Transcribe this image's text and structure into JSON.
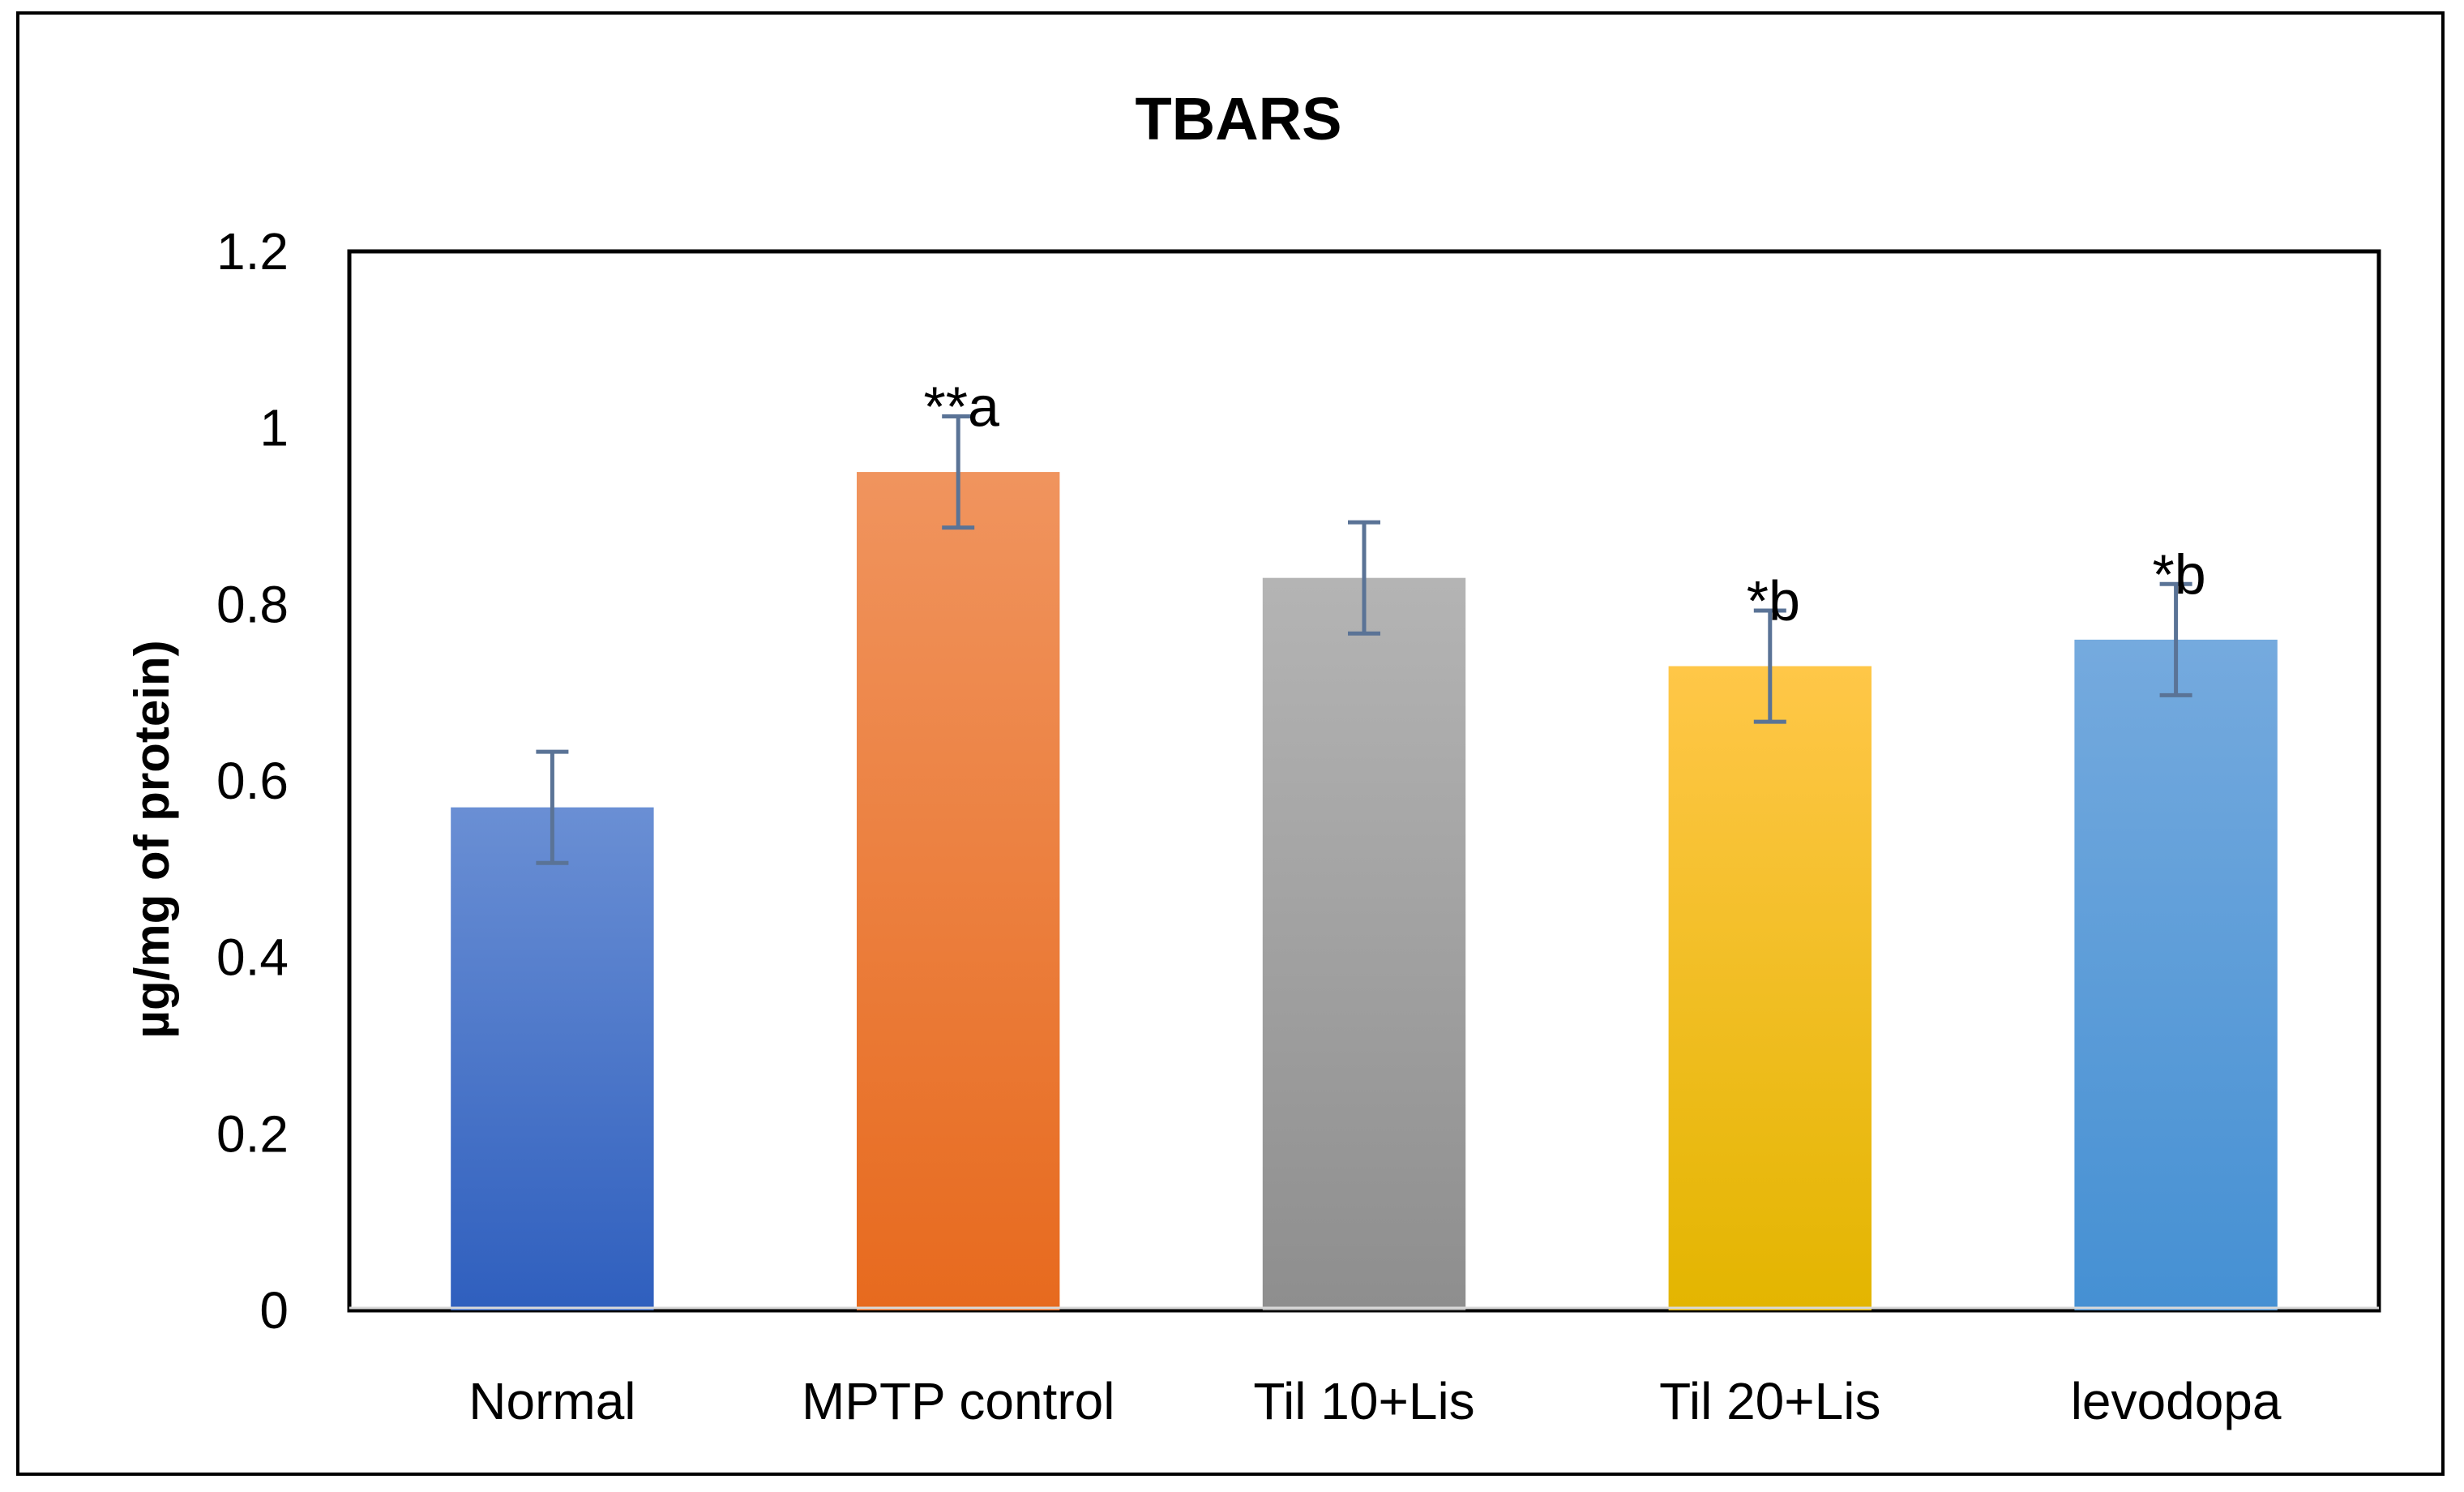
{
  "chart_data": {
    "type": "bar",
    "title": "TBARS",
    "xlabel": "",
    "ylabel": "µg/mg of protein)",
    "ylim": [
      0,
      1.2
    ],
    "yticks": [
      "0",
      "0.2",
      "0.4",
      "0.6",
      "0.8",
      "1",
      "1.2"
    ],
    "categories": [
      "Normal",
      "MPTP control",
      "Til 10+Lis",
      "Til 20+Lis",
      "levodopa"
    ],
    "values": [
      0.57,
      0.95,
      0.83,
      0.73,
      0.76
    ],
    "errors": [
      0.063,
      0.063,
      0.063,
      0.063,
      0.063
    ],
    "annotations": [
      "",
      "**a",
      "",
      "*b",
      "*b"
    ],
    "colors": {
      "top": [
        "#6a8fd4",
        "#f0945e",
        "#b4b4b4",
        "#ffc748",
        "#75aade"
      ],
      "bottom": [
        "#2f5fbe",
        "#e76a1e",
        "#8e8e8e",
        "#e3b500",
        "#4590d3"
      ]
    },
    "error_bar_color": "#5a7396",
    "grid": false,
    "legend": "none"
  }
}
